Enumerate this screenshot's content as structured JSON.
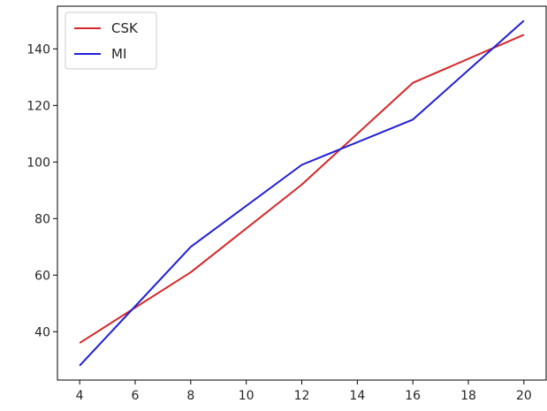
{
  "chart_data": {
    "type": "line",
    "title": "",
    "xlabel": "",
    "ylabel": "",
    "x": [
      4,
      8,
      12,
      16,
      20
    ],
    "series": [
      {
        "name": "CSK",
        "color": "#d62728",
        "values": [
          36,
          61,
          92,
          128,
          145
        ]
      },
      {
        "name": "MI",
        "color": "#1f1fd6",
        "values": [
          28,
          70,
          99,
          115,
          150
        ]
      }
    ],
    "xlim": [
      3.2,
      20.8
    ],
    "ylim": [
      22.9,
      155.1
    ],
    "xticks": [
      "4",
      "6",
      "8",
      "10",
      "12",
      "14",
      "16",
      "18",
      "20"
    ],
    "yticks": [
      "40",
      "60",
      "80",
      "100",
      "120",
      "140"
    ],
    "grid": false,
    "legend_position": "upper-left"
  }
}
